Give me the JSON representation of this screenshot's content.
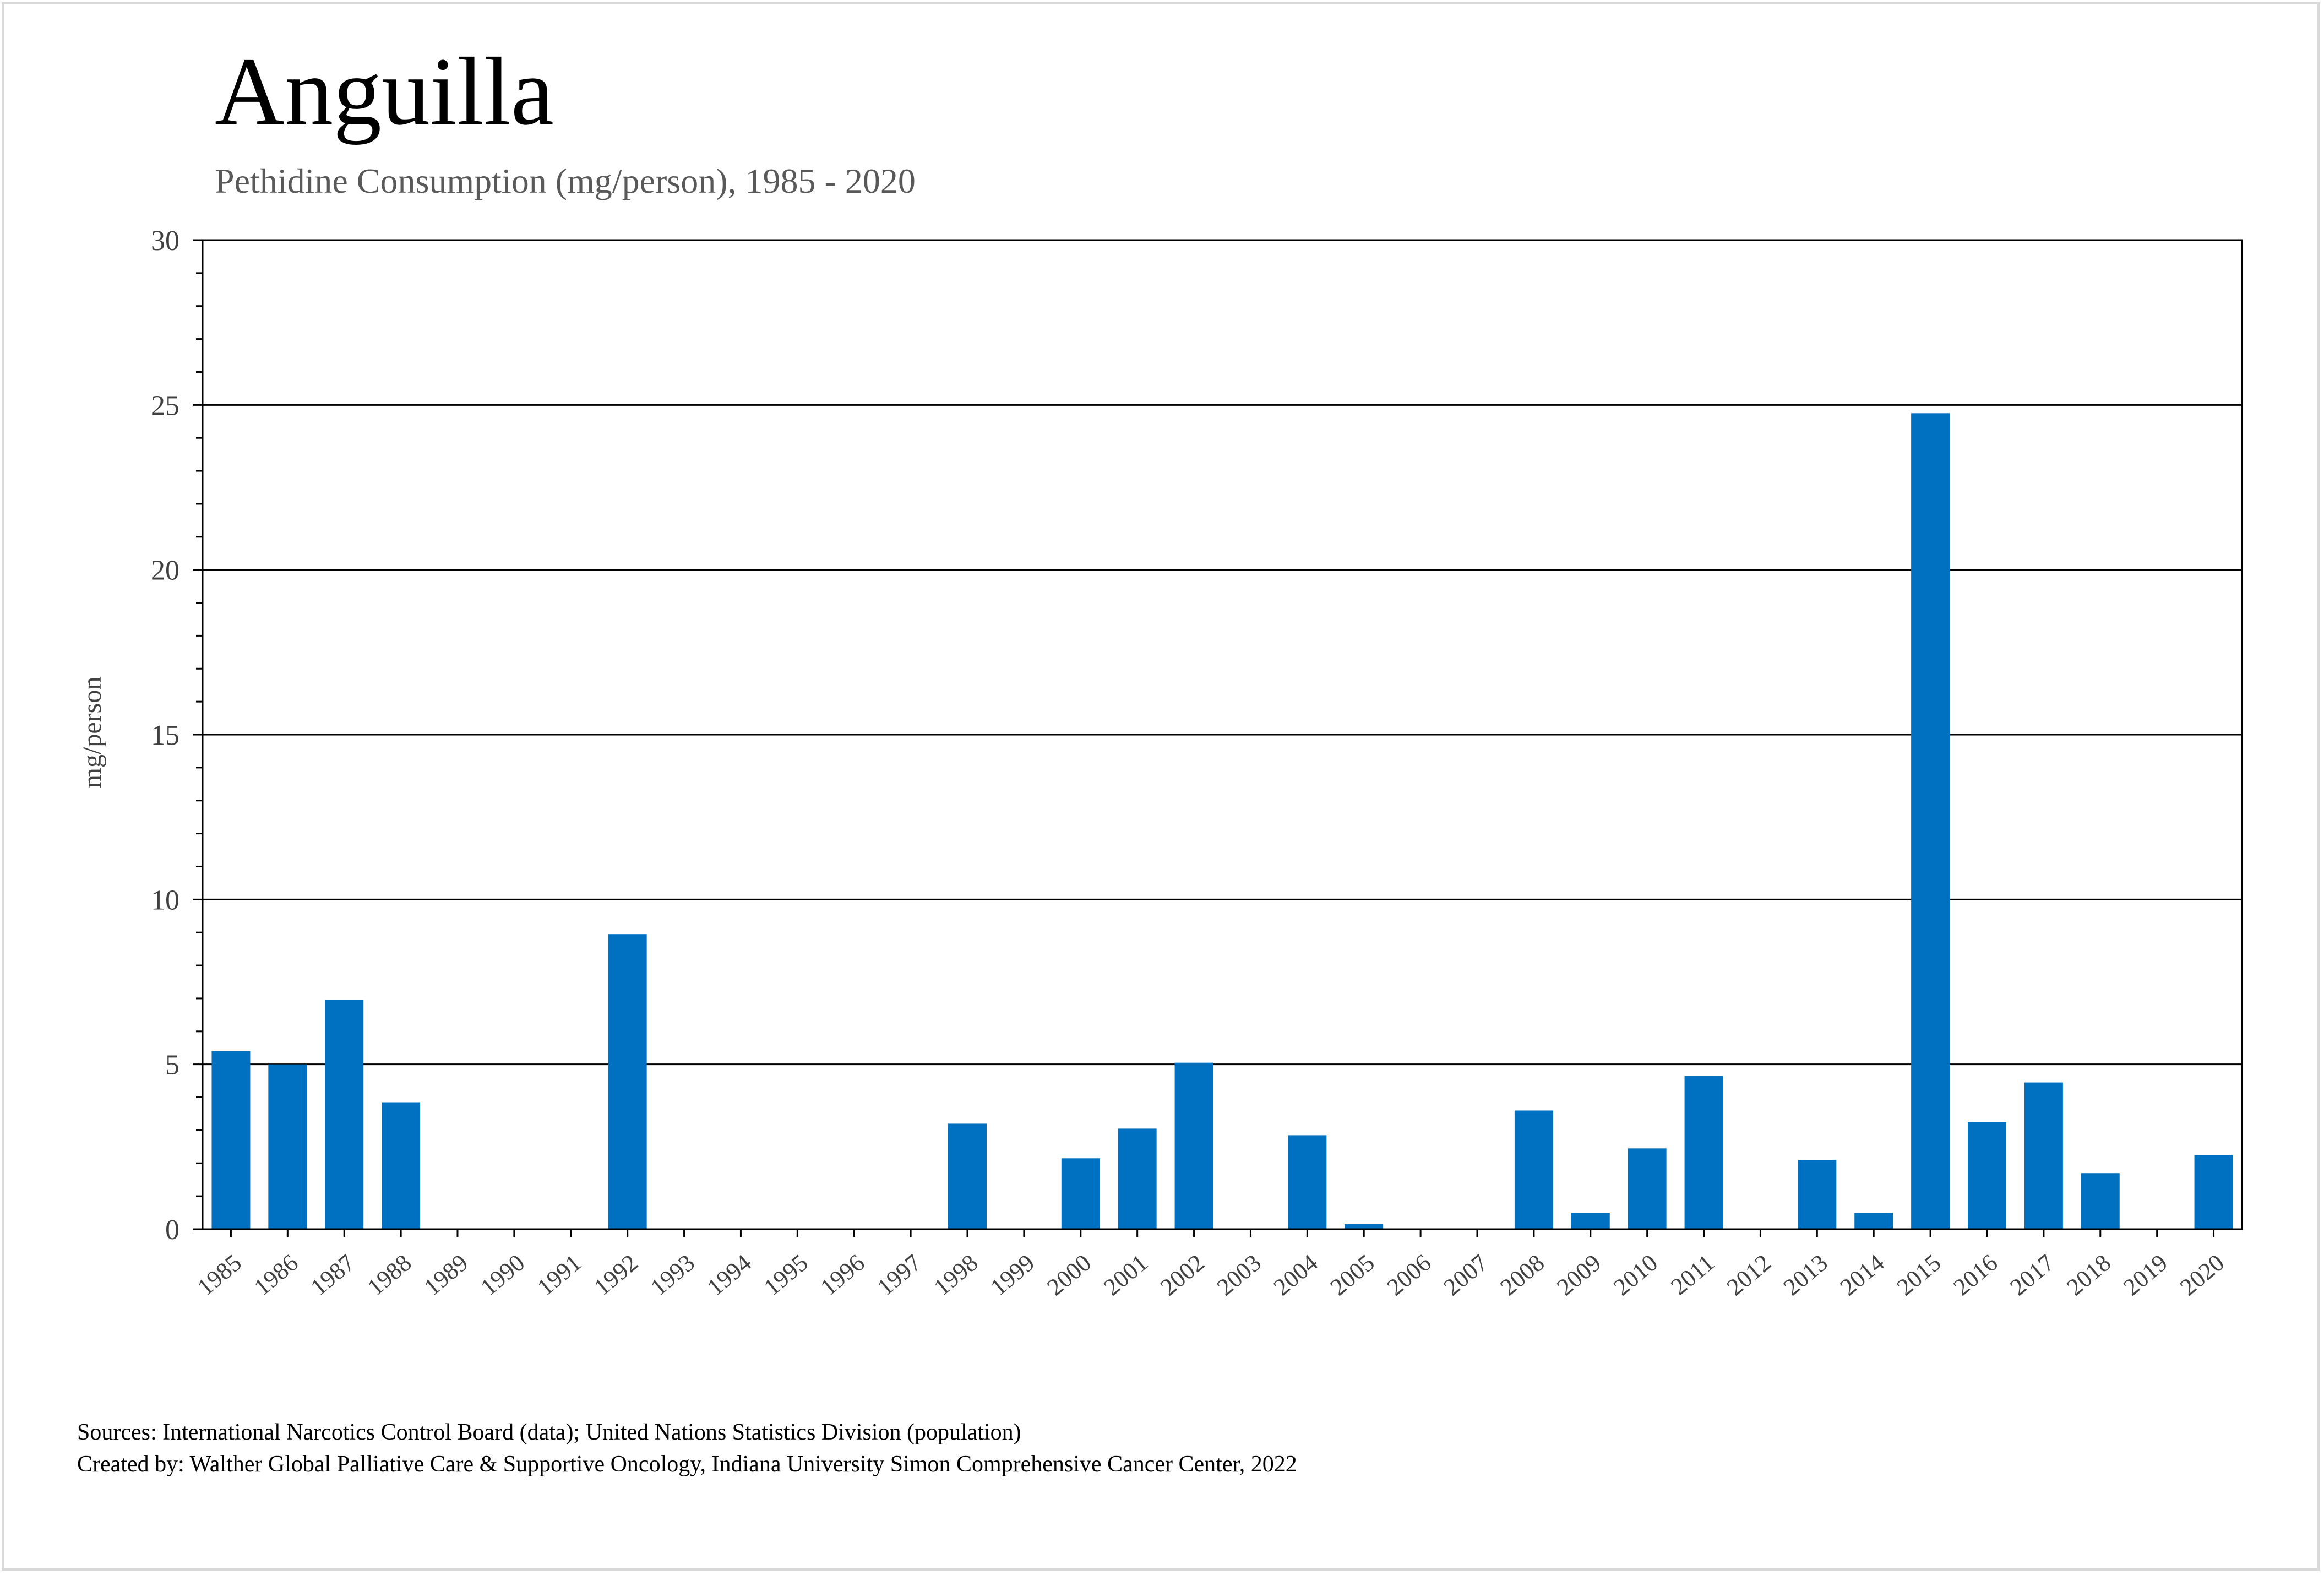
{
  "chart_data": {
    "type": "bar",
    "title": "Anguilla",
    "subtitle": "Pethidine Consumption (mg/person), 1985 - 2020",
    "xlabel": "",
    "ylabel": "mg/person",
    "ylim": [
      0,
      30
    ],
    "yticks": [
      "0",
      "5",
      "10",
      "15",
      "20",
      "25",
      "30"
    ],
    "grid": true,
    "bar_color": "#0070C0",
    "categories": [
      "1985",
      "1986",
      "1987",
      "1988",
      "1989",
      "1990",
      "1991",
      "1992",
      "1993",
      "1994",
      "1995",
      "1996",
      "1997",
      "1998",
      "1999",
      "2000",
      "2001",
      "2002",
      "2003",
      "2004",
      "2005",
      "2006",
      "2007",
      "2008",
      "2009",
      "2010",
      "2011",
      "2012",
      "2013",
      "2014",
      "2015",
      "2016",
      "2017",
      "2018",
      "2019",
      "2020"
    ],
    "values": [
      5.4,
      5.0,
      6.95,
      3.85,
      0,
      0,
      0,
      8.95,
      0,
      0,
      0,
      0,
      0,
      3.2,
      0,
      2.15,
      3.05,
      5.05,
      0,
      2.85,
      0.15,
      0,
      0,
      3.6,
      0.5,
      2.45,
      4.65,
      0,
      2.1,
      0.5,
      24.75,
      3.25,
      4.45,
      1.7,
      0,
      2.25
    ]
  },
  "footer": {
    "sources": "Sources: International Narcotics Control Board (data); United Nations Statistics Division (population)",
    "created_by": "Created by: Walther Global Palliative Care & Supportive Oncology, Indiana University Simon Comprehensive Cancer Center, 2022"
  }
}
